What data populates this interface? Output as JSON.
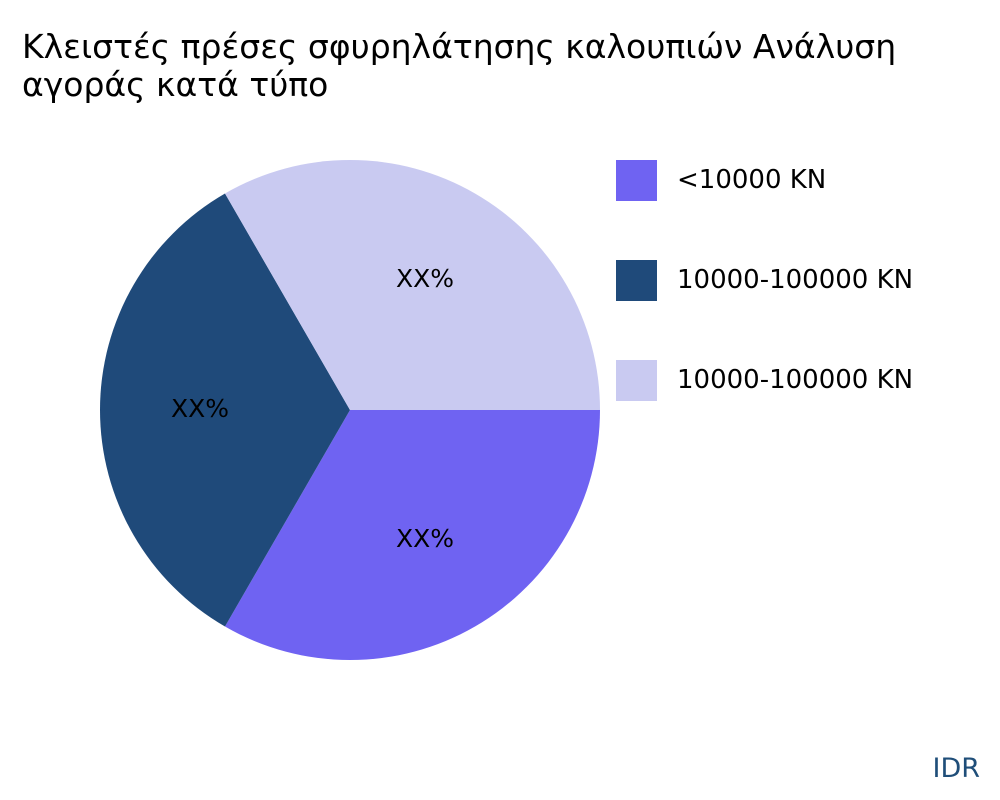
{
  "chart_data": {
    "type": "pie",
    "title": "Κλειστές πρέσες σφυρηλάτησης καλουπιών Ανάλυση αγοράς κατά τύπο",
    "legend_position": "right",
    "slices": [
      {
        "name": "<10000 KN",
        "value": 33.33,
        "label": "XX%",
        "color": "#6f63f2"
      },
      {
        "name": "10000-100000 KN",
        "value": 33.33,
        "label": "XX%",
        "color": "#1f4a7a"
      },
      {
        "name": "10000-100000 KN",
        "value": 33.33,
        "label": "XX%",
        "color": "#c9caf1"
      }
    ]
  },
  "brand": {
    "name": "IDR",
    "color": "#1f4e79"
  }
}
